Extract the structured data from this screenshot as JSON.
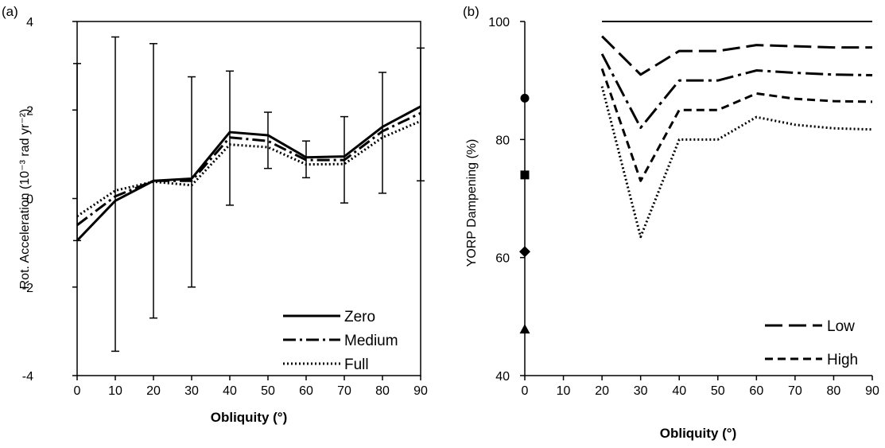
{
  "chart_data": [
    {
      "panel": "(a)",
      "type": "line",
      "xlabel": "Obliquity (°)",
      "ylabel": "Rot. Acceleration (10⁻³ rad yr⁻²)",
      "xlim": [
        0,
        90
      ],
      "ylim": [
        -4,
        4
      ],
      "x_ticks": [
        "0",
        "10",
        "20",
        "30",
        "40",
        "50",
        "60",
        "70",
        "80",
        "90"
      ],
      "y_ticks": [
        "4",
        "2",
        "0",
        "-2",
        "-4"
      ],
      "x": [
        0,
        10,
        20,
        30,
        40,
        50,
        60,
        70,
        80,
        90
      ],
      "series": [
        {
          "name": "Zero",
          "style": "solid",
          "values": [
            -0.95,
            -0.05,
            0.4,
            0.45,
            1.5,
            1.43,
            0.93,
            0.95,
            1.62,
            2.08
          ]
        },
        {
          "name": "Medium",
          "style": "dashdot",
          "values": [
            -0.6,
            0.05,
            0.4,
            0.4,
            1.38,
            1.3,
            0.87,
            0.87,
            1.52,
            1.93
          ]
        },
        {
          "name": "Full",
          "style": "dotted",
          "values": [
            -0.4,
            0.18,
            0.38,
            0.3,
            1.22,
            1.16,
            0.77,
            0.78,
            1.38,
            1.75
          ]
        }
      ],
      "error_bars": {
        "x": [
          0,
          10,
          20,
          30,
          40,
          50,
          60,
          70,
          80,
          90
        ],
        "low": [
          -0.95,
          -3.45,
          -2.7,
          -2.0,
          -0.15,
          0.68,
          0.47,
          -0.1,
          0.12,
          0.4
        ],
        "high": [
          3.05,
          3.65,
          3.5,
          2.75,
          2.88,
          1.95,
          1.3,
          1.85,
          2.85,
          3.4
        ]
      },
      "legend": {
        "position": "bottom-right",
        "entries": [
          "Zero",
          "Medium",
          "Full"
        ]
      },
      "grid": false
    },
    {
      "panel": "(b)",
      "type": "line",
      "xlabel": "Obliquity (°)",
      "ylabel": "YORP Dampening (%)",
      "xlim": [
        0,
        90
      ],
      "ylim": [
        40,
        100
      ],
      "x_ticks": [
        "0",
        "10",
        "20",
        "30",
        "40",
        "50",
        "60",
        "70",
        "80",
        "90"
      ],
      "y_ticks": [
        "100",
        "80",
        "60",
        "40"
      ],
      "x": [
        20,
        30,
        40,
        50,
        60,
        70,
        80,
        90
      ],
      "series": [
        {
          "style": "solid",
          "values": [
            100,
            100,
            100,
            100,
            100,
            100,
            100,
            100
          ]
        },
        {
          "name": "Low",
          "style": "longdash",
          "values": [
            97.5,
            91,
            95,
            95,
            96,
            95.8,
            95.6,
            95.6
          ]
        },
        {
          "style": "longdashdot",
          "values": [
            94.5,
            82,
            90,
            90,
            91.7,
            91.3,
            91,
            90.9
          ]
        },
        {
          "name": "High",
          "style": "dashed",
          "values": [
            92,
            73,
            85,
            85,
            87.8,
            86.9,
            86.5,
            86.4
          ]
        },
        {
          "style": "dotted",
          "values": [
            89,
            63.5,
            80,
            80,
            83.8,
            82.5,
            81.9,
            81.7
          ]
        }
      ],
      "markers": [
        {
          "shape": "circle",
          "x": 0,
          "y": 87
        },
        {
          "shape": "square",
          "x": 0,
          "y": 74
        },
        {
          "shape": "diamond",
          "x": 0,
          "y": 61
        },
        {
          "shape": "triangle",
          "x": 0,
          "y": 47.8
        }
      ],
      "legend": {
        "position": "bottom-right",
        "entries": [
          "Low",
          "High"
        ]
      },
      "grid": false
    }
  ]
}
